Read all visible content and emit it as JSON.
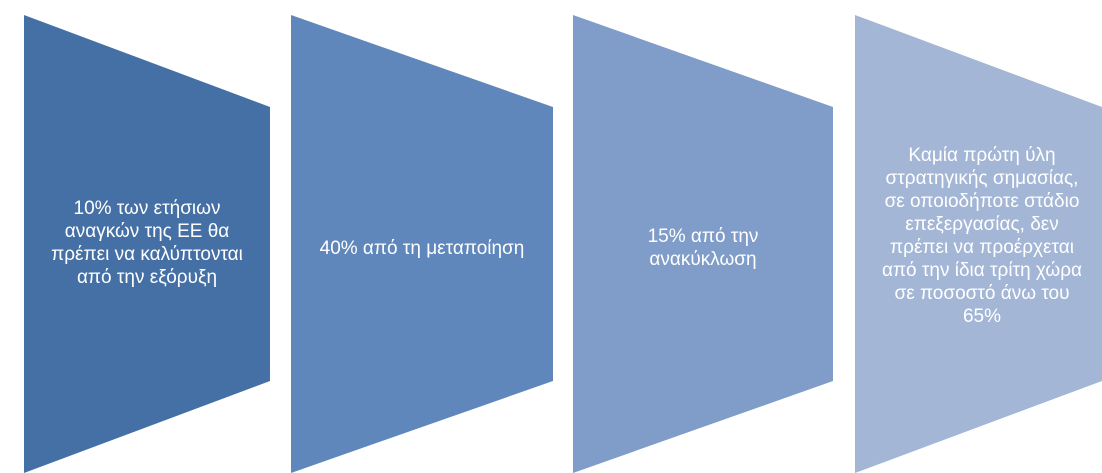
{
  "steps": [
    {
      "text": "10% των ετήσιων\nαναγκών της ΕΕ θα\nπρέπει να καλύπτονται\nαπό την εξόρυξη",
      "color": "#4570A6"
    },
    {
      "text": "40% από τη μεταποίηση",
      "color": "#5F87BB"
    },
    {
      "text": "15% από την\nανακύκλωση",
      "color": "#7F9DC8"
    },
    {
      "text": "Καμία πρώτη ύλη\nστρατηγικής σημασίας,\nσε οποιοδήποτε στάδιο\nεπεξεργασίας, δεν\nπρέπει να προέρχεται\nαπό την ίδια τρίτη χώρα\nσε ποσοστό άνω του\n65%",
      "color": "#A3B6D6"
    }
  ]
}
